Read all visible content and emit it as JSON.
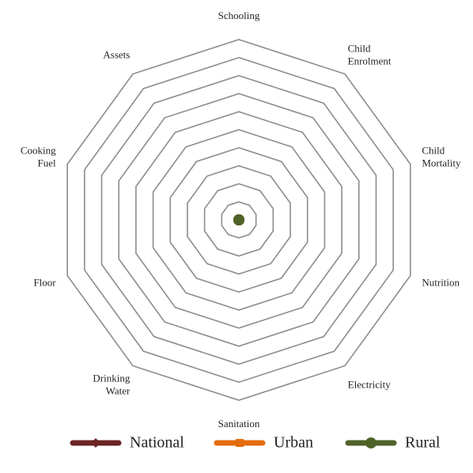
{
  "chart_data": {
    "type": "radar",
    "categories": [
      "Schooling",
      "Child Enrolment",
      "Child Mortality",
      "Nutrition",
      "Electricity",
      "Sanitation",
      "Drinking Water",
      "Floor",
      "Cooking Fuel",
      "Assets"
    ],
    "rlim": [
      0,
      0.5
    ],
    "rticks": [
      0.05,
      0.1,
      0.15,
      0.2,
      0.25,
      0.3,
      0.35,
      0.4,
      0.45,
      0.5
    ],
    "grid": true,
    "legend": "bottom",
    "series": [
      {
        "name": "National",
        "color": "#6b2424",
        "marker": "diamond",
        "values": [
          0,
          0,
          0,
          0,
          0,
          0,
          0,
          0,
          0,
          0
        ]
      },
      {
        "name": "Urban",
        "color": "#e46c0a",
        "marker": "square",
        "values": [
          0,
          0,
          0,
          0,
          0,
          0,
          0,
          0,
          0,
          0
        ]
      },
      {
        "name": "Rural",
        "color": "#4f6228",
        "marker": "circle",
        "values": [
          0,
          0,
          0,
          0,
          0,
          0,
          0,
          0,
          0,
          0
        ]
      }
    ]
  }
}
